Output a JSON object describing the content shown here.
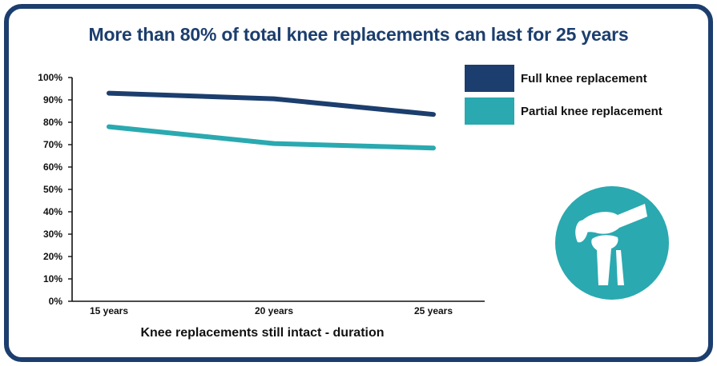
{
  "chart_data": {
    "type": "line",
    "title": "More than 80% of total knee replacements can last for 25 years",
    "xlabel": "Knee replacements still intact - duration",
    "ylabel": "",
    "categories": [
      "15 years",
      "20 years",
      "25 years"
    ],
    "ylim": [
      0,
      100
    ],
    "yticks": [
      0,
      10,
      20,
      30,
      40,
      50,
      60,
      70,
      80,
      90,
      100
    ],
    "ytick_labels": [
      "0%",
      "10%",
      "20%",
      "30%",
      "40%",
      "50%",
      "60%",
      "70%",
      "80%",
      "90%",
      "100%"
    ],
    "grid": false,
    "legend_position": "top-right",
    "series": [
      {
        "name": "Full knee replacement",
        "values": [
          93,
          90.5,
          83.5
        ],
        "color": "#1c3e6e"
      },
      {
        "name": "Partial knee replacement",
        "values": [
          78,
          70.5,
          68.5
        ],
        "color": "#2aa9b0"
      }
    ]
  },
  "theme": {
    "frame_color": "#1c3e6e",
    "accent": "#2aa9b0",
    "axis_color": "#111111"
  },
  "decoration": {
    "icon": "knee-joint-icon"
  }
}
